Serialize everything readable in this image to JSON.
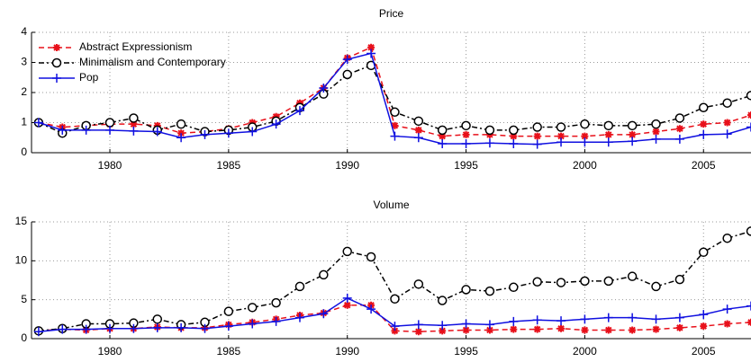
{
  "chart_data": [
    {
      "type": "line",
      "title": "Price",
      "x": [
        1977,
        1978,
        1979,
        1980,
        1981,
        1982,
        1983,
        1984,
        1985,
        1986,
        1987,
        1988,
        1989,
        1990,
        1991,
        1992,
        1993,
        1994,
        1995,
        1996,
        1997,
        1998,
        1999,
        2000,
        2001,
        2002,
        2003,
        2004,
        2005,
        2006,
        2007
      ],
      "xlim": [
        1976.7,
        2007
      ],
      "xticks": [
        1980,
        1985,
        1990,
        1995,
        2000,
        2005
      ],
      "ylim": [
        0,
        4
      ],
      "yticks": [
        0,
        1,
        2,
        3,
        4
      ],
      "grid": true,
      "legend": "upper left",
      "series": [
        {
          "name": "Abstract Expressionism",
          "color": "#e8101a",
          "values": [
            1.0,
            0.85,
            0.9,
            0.95,
            0.95,
            0.9,
            0.65,
            0.7,
            0.8,
            1.0,
            1.2,
            1.65,
            2.15,
            3.15,
            3.5,
            0.9,
            0.75,
            0.55,
            0.6,
            0.6,
            0.55,
            0.55,
            0.55,
            0.55,
            0.6,
            0.6,
            0.7,
            0.8,
            0.95,
            1.0,
            1.25
          ]
        },
        {
          "name": "Minimalism and Contemporary",
          "color": "#000000",
          "values": [
            1.0,
            0.65,
            0.9,
            1.0,
            1.15,
            0.75,
            0.95,
            0.7,
            0.75,
            0.85,
            1.05,
            1.5,
            1.95,
            2.6,
            2.9,
            1.35,
            1.05,
            0.75,
            0.9,
            0.75,
            0.75,
            0.85,
            0.85,
            0.95,
            0.9,
            0.9,
            0.95,
            1.15,
            1.5,
            1.65,
            1.9
          ]
        },
        {
          "name": "Pop",
          "color": "#1010e0",
          "values": [
            1.0,
            0.75,
            0.75,
            0.75,
            0.72,
            0.7,
            0.5,
            0.6,
            0.65,
            0.7,
            0.95,
            1.4,
            2.15,
            3.1,
            3.3,
            0.55,
            0.5,
            0.3,
            0.3,
            0.32,
            0.3,
            0.28,
            0.35,
            0.35,
            0.35,
            0.38,
            0.45,
            0.45,
            0.6,
            0.62,
            0.85
          ]
        }
      ]
    },
    {
      "type": "line",
      "title": "Volume",
      "x": [
        1977,
        1978,
        1979,
        1980,
        1981,
        1982,
        1983,
        1984,
        1985,
        1986,
        1987,
        1988,
        1989,
        1990,
        1991,
        1992,
        1993,
        1994,
        1995,
        1996,
        1997,
        1998,
        1999,
        2000,
        2001,
        2002,
        2003,
        2004,
        2005,
        2006,
        2007
      ],
      "xlim": [
        1976.7,
        2007
      ],
      "xticks": [
        1980,
        1985,
        1990,
        1995,
        2000,
        2005
      ],
      "ylim": [
        0,
        15
      ],
      "yticks": [
        0,
        5,
        10,
        15
      ],
      "grid": true,
      "series": [
        {
          "name": "Abstract Expressionism",
          "color": "#e8101a",
          "values": [
            1.0,
            1.2,
            1.1,
            1.3,
            1.3,
            1.5,
            1.4,
            1.4,
            1.8,
            2.1,
            2.5,
            3.0,
            3.3,
            4.3,
            4.3,
            1.0,
            0.9,
            1.0,
            1.1,
            1.1,
            1.2,
            1.2,
            1.3,
            1.1,
            1.1,
            1.1,
            1.2,
            1.4,
            1.6,
            1.9,
            2.1
          ]
        },
        {
          "name": "Minimalism and Contemporary",
          "color": "#000000",
          "values": [
            1.0,
            1.3,
            1.9,
            1.9,
            2.0,
            2.5,
            1.8,
            2.1,
            3.5,
            4.0,
            4.6,
            6.7,
            8.2,
            11.2,
            10.5,
            5.1,
            7.0,
            4.9,
            6.3,
            6.1,
            6.6,
            7.3,
            7.2,
            7.4,
            7.4,
            8.0,
            6.7,
            7.6,
            11.1,
            12.9,
            13.8
          ]
        },
        {
          "name": "Pop",
          "color": "#1010e0",
          "values": [
            0.9,
            1.2,
            1.2,
            1.3,
            1.3,
            1.4,
            1.4,
            1.3,
            1.6,
            1.9,
            2.2,
            2.7,
            3.2,
            5.2,
            3.8,
            1.6,
            1.8,
            1.7,
            1.9,
            1.8,
            2.2,
            2.4,
            2.3,
            2.5,
            2.7,
            2.7,
            2.5,
            2.7,
            3.1,
            3.8,
            4.2
          ]
        }
      ]
    }
  ]
}
